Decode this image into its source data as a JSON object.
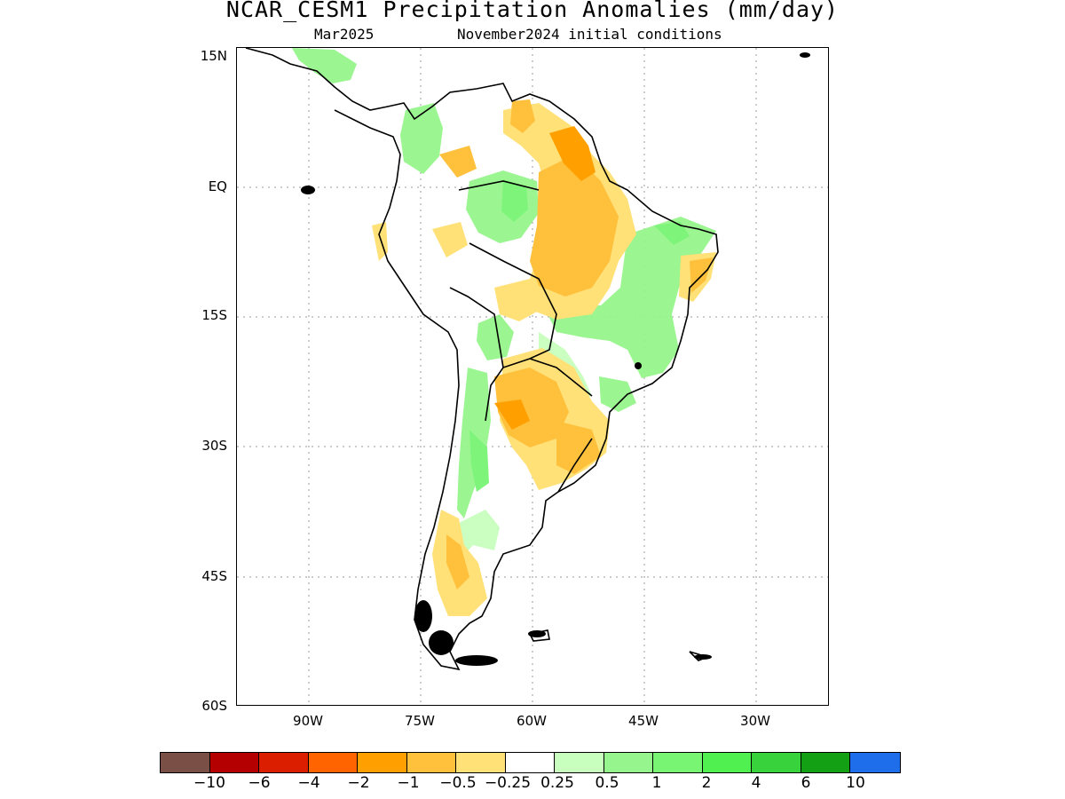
{
  "title": "NCAR_CESM1 Precipitation Anomalies (mm/day)",
  "subtitle_left": "Mar2025",
  "subtitle_right": "November2024 initial conditions",
  "lat_ticks": [
    "15N",
    "EQ",
    "15S",
    "30S",
    "45S",
    "60S"
  ],
  "lon_ticks": [
    "90W",
    "75W",
    "60W",
    "45W",
    "30W"
  ],
  "colorbar": {
    "colors": [
      "#7a5046",
      "#b40000",
      "#dc1e00",
      "#ff6400",
      "#ffa000",
      "#ffc03c",
      "#ffe178",
      "#ffffff",
      "#c8ffbe",
      "#96f58c",
      "#78f573",
      "#50f050",
      "#37d23c",
      "#14a014",
      "#1e6eeb"
    ],
    "labels": [
      "−10",
      "−6",
      "−4",
      "−2",
      "−1",
      "−0.5",
      "−0.25",
      "0.25",
      "0.5",
      "1",
      "2",
      "4",
      "6",
      "10"
    ]
  }
}
